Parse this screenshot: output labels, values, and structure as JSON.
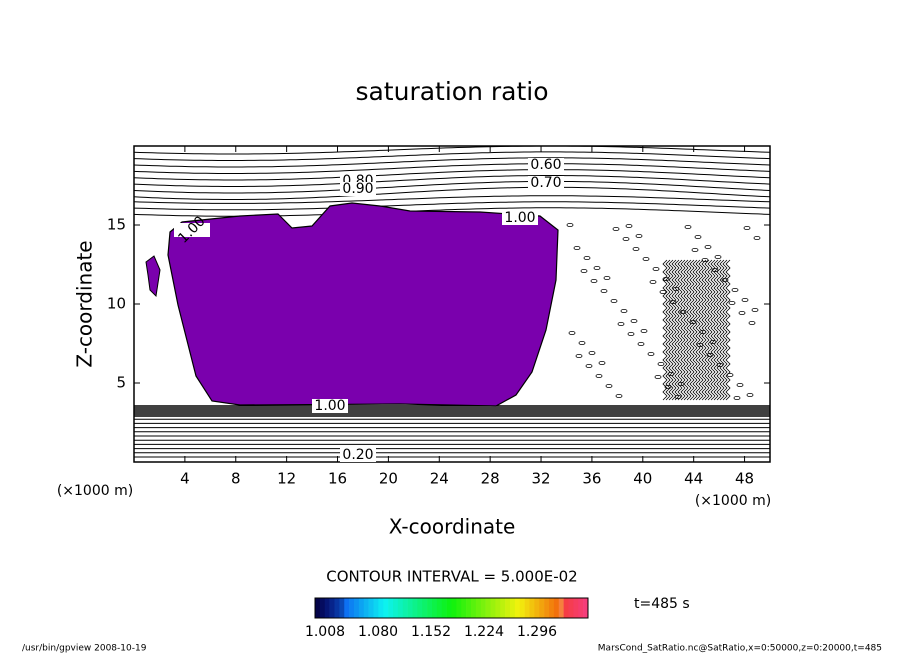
{
  "chart_data": {
    "type": "contour",
    "title": "saturation ratio",
    "x_label": "X-coordinate",
    "y_label": "Z-coordinate",
    "x_unit_label": "(×1000 m)",
    "y_unit_label": "(×1000 m)",
    "xlim": [
      0,
      50
    ],
    "ylim": [
      0,
      20
    ],
    "xticks": [
      4,
      8,
      12,
      16,
      20,
      24,
      28,
      32,
      36,
      40,
      44,
      48
    ],
    "yticks": [
      5,
      10,
      15
    ],
    "fill_color": "#7a00ad",
    "contour_labels": [
      {
        "value": 0.6,
        "label": "0.60"
      },
      {
        "value": 0.7,
        "label": "0.70"
      },
      {
        "value": 0.8,
        "label": "0.80"
      },
      {
        "value": 0.9,
        "label": "0.90"
      },
      {
        "value": 1,
        "label": "1.00"
      },
      {
        "value": 1,
        "label": "1.00"
      },
      {
        "value": 1,
        "label": "1.00"
      },
      {
        "value": 0.2,
        "label": "0.20"
      }
    ],
    "contour_interval_text": "CONTOUR INTERVAL = 5.000E-02",
    "time_label": "t=485 s",
    "colorbar_ticks": [
      1.008,
      {
        "value": 1.08,
        "label": "1.080"
      },
      1.152,
      1.224,
      1.296
    ],
    "footer_left": "/usr/bin/gpview  2008-10-19",
    "footer_right": "MarsCond_SatRatio.nc@SatRatio,x=0:50000,z=0:20000,t=485"
  }
}
